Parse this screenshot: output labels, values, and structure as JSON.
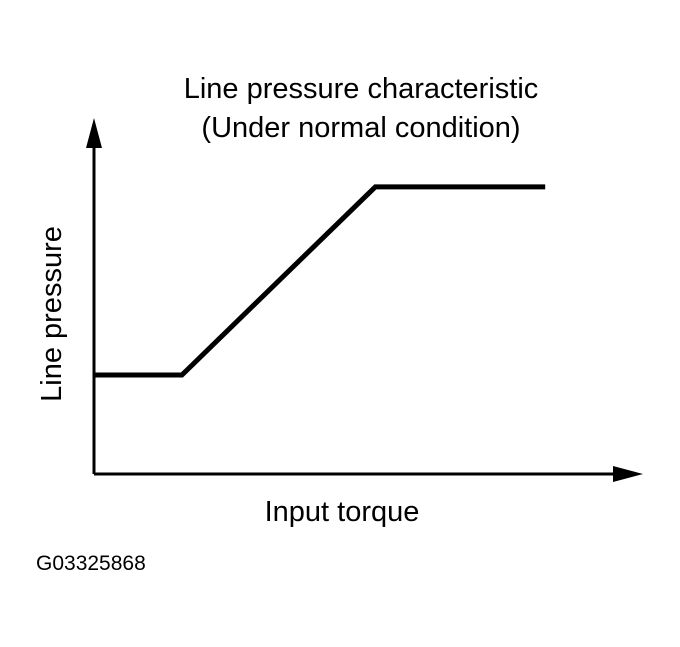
{
  "chart_data": {
    "type": "line",
    "title": "Line pressure characteristic",
    "subtitle": "(Under normal condition)",
    "xlabel": "Input torque",
    "ylabel": "Line pressure",
    "grid": false,
    "ticks": false,
    "xlim": [
      0,
      100
    ],
    "ylim": [
      0,
      100
    ],
    "series": [
      {
        "values": [
          {
            "x": 0,
            "y": 30
          },
          {
            "x": 15,
            "y": 30
          },
          {
            "x": 48,
            "y": 87
          },
          {
            "x": 77,
            "y": 87
          }
        ]
      }
    ]
  },
  "figure_id": "G03325868",
  "colors": {
    "line": "#000000",
    "background": "#ffffff"
  }
}
